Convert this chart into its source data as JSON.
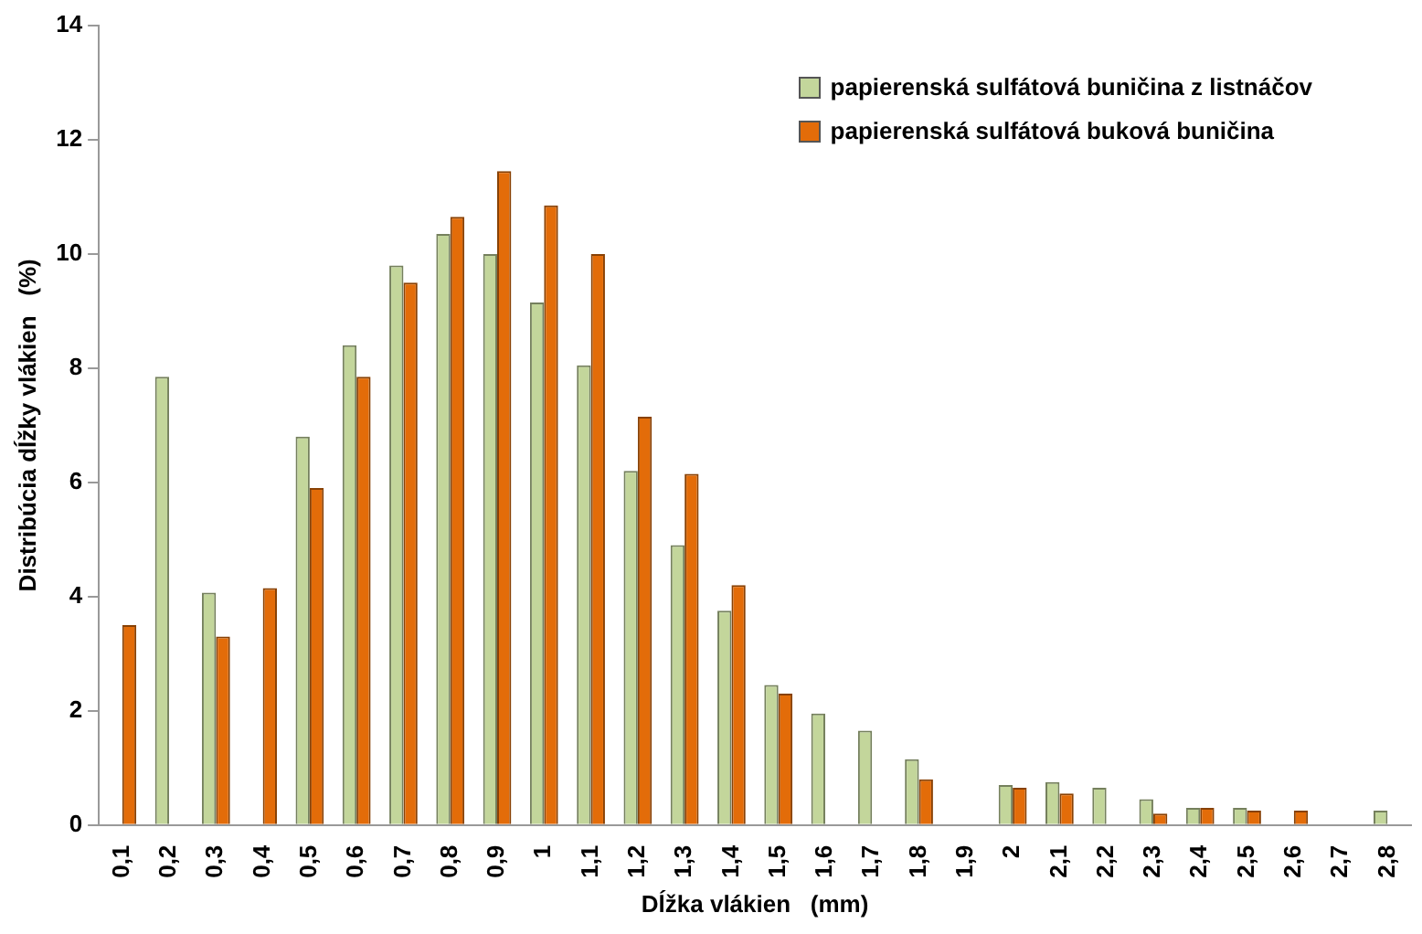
{
  "chart_data": {
    "type": "bar",
    "xlabel": "Dĺžka vlákien   (mm)",
    "ylabel": "Distribúcia dĺžky vlákien   (%)",
    "categories": [
      "0,1",
      "0,2",
      "0,3",
      "0,4",
      "0,5",
      "0,6",
      "0,7",
      "0,8",
      "0,9",
      "1",
      "1,1",
      "1,2",
      "1,3",
      "1,4",
      "1,5",
      "1,6",
      "1,7",
      "1,8",
      "1,9",
      "2",
      "2,1",
      "2,2",
      "2,3",
      "2,4",
      "2,5",
      "2,6",
      "2,7",
      "2,8"
    ],
    "series": [
      {
        "name": "papierenská sulfátová buničina z listnáčov",
        "color": "#c3d69b",
        "values": [
          0,
          7.85,
          4.07,
          0,
          6.8,
          8.4,
          9.8,
          10.35,
          10.0,
          9.15,
          8.05,
          6.2,
          4.9,
          3.75,
          2.45,
          1.95,
          1.65,
          1.15,
          0,
          0.7,
          0.75,
          0.65,
          0.45,
          0.3,
          0.3,
          0,
          0,
          0.25
        ]
      },
      {
        "name": "papierenská sulfátová buková buničina",
        "color": "#e36c09",
        "values": [
          3.5,
          0,
          3.3,
          4.15,
          5.9,
          7.85,
          9.5,
          10.65,
          11.45,
          10.85,
          10.0,
          7.15,
          6.15,
          4.2,
          2.3,
          0,
          0,
          0.8,
          0,
          0.65,
          0.55,
          0,
          0.2,
          0.3,
          0.25,
          0.25,
          0,
          0
        ]
      }
    ],
    "ylim": [
      0,
      14
    ],
    "yticks": [
      0,
      2,
      4,
      6,
      8,
      10,
      12,
      14
    ],
    "grid": false,
    "legend": "top right"
  }
}
